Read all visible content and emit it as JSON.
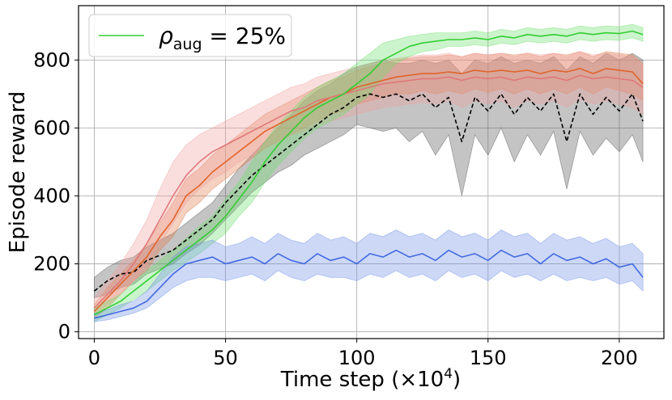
{
  "chart_data": {
    "type": "line",
    "title": "",
    "xlabel": "Time step (×10",
    "xlabel_sup": "4",
    "xlabel_close": ")",
    "ylabel": "Episode reward",
    "xlim": [
      -6,
      217
    ],
    "ylim": [
      -20,
      960
    ],
    "grid": true,
    "x_ticks": [
      0,
      50,
      100,
      150,
      200
    ],
    "y_ticks": [
      0,
      200,
      400,
      600,
      800
    ],
    "legend": {
      "position": "top-left",
      "symbol": "ρ",
      "subscript": "aug",
      "text": " = 25%",
      "color": "#32cd32"
    },
    "series": [
      {
        "name": "black-dashed",
        "color": "#000000",
        "band_color": "#555555",
        "dashed": true,
        "x": [
          0,
          5,
          10,
          15,
          20,
          25,
          30,
          35,
          40,
          45,
          50,
          55,
          60,
          65,
          70,
          75,
          80,
          85,
          90,
          95,
          100,
          105,
          110,
          115,
          120,
          125,
          130,
          135,
          140,
          145,
          150,
          155,
          160,
          165,
          170,
          175,
          180,
          185,
          190,
          195,
          200,
          205,
          209
        ],
        "mean": [
          120,
          150,
          170,
          175,
          210,
          225,
          240,
          270,
          300,
          330,
          380,
          420,
          460,
          490,
          520,
          550,
          580,
          610,
          640,
          660,
          690,
          700,
          690,
          700,
          680,
          700,
          660,
          690,
          560,
          690,
          650,
          700,
          640,
          690,
          650,
          700,
          560,
          700,
          640,
          690,
          650,
          700,
          620
        ],
        "lower": [
          100,
          110,
          130,
          140,
          170,
          185,
          200,
          230,
          255,
          290,
          330,
          370,
          410,
          440,
          470,
          490,
          520,
          540,
          560,
          580,
          610,
          600,
          590,
          600,
          560,
          590,
          520,
          580,
          400,
          580,
          520,
          600,
          500,
          580,
          520,
          590,
          420,
          590,
          520,
          570,
          530,
          580,
          500
        ],
        "upper": [
          160,
          190,
          210,
          220,
          250,
          270,
          290,
          320,
          350,
          380,
          430,
          480,
          520,
          560,
          600,
          640,
          680,
          710,
          730,
          760,
          780,
          790,
          800,
          790,
          790,
          800,
          790,
          800,
          760,
          800,
          790,
          810,
          790,
          800,
          790,
          810,
          770,
          810,
          790,
          820,
          800,
          820,
          800
        ]
      },
      {
        "name": "orange",
        "color": "#e0642a",
        "band_color": "#e07a4a",
        "dashed": false,
        "x": [
          0,
          5,
          10,
          15,
          20,
          25,
          30,
          35,
          40,
          45,
          50,
          55,
          60,
          65,
          70,
          75,
          80,
          85,
          90,
          95,
          100,
          105,
          110,
          115,
          120,
          125,
          130,
          135,
          140,
          145,
          150,
          155,
          160,
          165,
          170,
          175,
          180,
          185,
          190,
          195,
          200,
          205,
          209
        ],
        "mean": [
          60,
          100,
          140,
          180,
          220,
          280,
          330,
          400,
          430,
          470,
          500,
          530,
          560,
          590,
          610,
          630,
          650,
          670,
          690,
          700,
          720,
          730,
          740,
          750,
          755,
          760,
          760,
          765,
          760,
          770,
          765,
          770,
          765,
          770,
          760,
          770,
          765,
          775,
          760,
          775,
          770,
          765,
          730
        ],
        "lower": [
          40,
          70,
          110,
          150,
          180,
          240,
          280,
          350,
          380,
          420,
          450,
          480,
          510,
          540,
          560,
          580,
          600,
          620,
          640,
          650,
          670,
          680,
          690,
          700,
          700,
          710,
          700,
          710,
          700,
          715,
          705,
          715,
          700,
          715,
          700,
          715,
          700,
          720,
          700,
          720,
          710,
          700,
          680
        ],
        "upper": [
          80,
          130,
          170,
          210,
          260,
          320,
          380,
          450,
          480,
          520,
          550,
          580,
          610,
          640,
          660,
          680,
          700,
          720,
          740,
          750,
          770,
          780,
          790,
          800,
          805,
          810,
          810,
          815,
          810,
          820,
          815,
          820,
          815,
          820,
          810,
          820,
          815,
          825,
          810,
          825,
          820,
          815,
          790
        ]
      },
      {
        "name": "pink",
        "color": "#e07878",
        "band_color": "#f0a0a0",
        "dashed": false,
        "x": [
          0,
          5,
          10,
          15,
          20,
          25,
          30,
          35,
          40,
          45,
          50,
          55,
          60,
          65,
          70,
          75,
          80,
          85,
          90,
          95,
          100,
          105,
          110,
          115,
          120,
          125,
          130,
          135,
          140,
          145,
          150,
          155,
          160,
          165,
          170,
          175,
          180,
          185,
          190,
          195,
          200,
          205,
          209
        ],
        "mean": [
          70,
          110,
          150,
          200,
          260,
          330,
          400,
          460,
          500,
          530,
          550,
          570,
          590,
          610,
          630,
          650,
          660,
          680,
          690,
          700,
          710,
          720,
          730,
          735,
          740,
          745,
          745,
          750,
          740,
          750,
          745,
          750,
          740,
          750,
          745,
          750,
          740,
          755,
          745,
          750,
          745,
          740,
          720
        ],
        "lower": [
          50,
          80,
          110,
          150,
          200,
          260,
          320,
          380,
          420,
          450,
          470,
          500,
          520,
          540,
          560,
          580,
          590,
          610,
          620,
          630,
          640,
          650,
          660,
          665,
          670,
          675,
          670,
          680,
          660,
          680,
          670,
          680,
          660,
          680,
          670,
          680,
          660,
          685,
          670,
          680,
          670,
          660,
          640
        ],
        "upper": [
          100,
          150,
          200,
          260,
          330,
          420,
          500,
          550,
          580,
          600,
          620,
          640,
          660,
          680,
          700,
          720,
          730,
          750,
          760,
          770,
          780,
          790,
          800,
          805,
          810,
          815,
          815,
          820,
          810,
          820,
          815,
          820,
          810,
          820,
          815,
          820,
          810,
          825,
          815,
          820,
          815,
          810,
          790
        ]
      },
      {
        "name": "green",
        "color": "#32cd32",
        "band_color": "#6ee06e",
        "dashed": false,
        "x": [
          0,
          5,
          10,
          15,
          20,
          25,
          30,
          35,
          40,
          45,
          50,
          55,
          60,
          65,
          70,
          75,
          80,
          85,
          90,
          95,
          100,
          105,
          110,
          115,
          120,
          125,
          130,
          135,
          140,
          145,
          150,
          155,
          160,
          165,
          170,
          175,
          180,
          185,
          190,
          195,
          200,
          205,
          209
        ],
        "mean": [
          50,
          70,
          90,
          120,
          150,
          180,
          210,
          240,
          270,
          300,
          340,
          390,
          440,
          500,
          550,
          590,
          630,
          660,
          680,
          700,
          730,
          760,
          800,
          820,
          840,
          850,
          855,
          860,
          860,
          865,
          860,
          870,
          865,
          875,
          870,
          875,
          870,
          880,
          875,
          880,
          878,
          885,
          875
        ],
        "lower": [
          30,
          50,
          70,
          95,
          120,
          150,
          180,
          205,
          230,
          260,
          290,
          340,
          380,
          440,
          490,
          530,
          570,
          600,
          620,
          640,
          670,
          700,
          750,
          790,
          810,
          825,
          830,
          840,
          840,
          845,
          840,
          850,
          845,
          855,
          850,
          855,
          850,
          860,
          855,
          860,
          858,
          865,
          855
        ],
        "upper": [
          70,
          90,
          110,
          145,
          180,
          210,
          240,
          275,
          310,
          340,
          390,
          440,
          500,
          560,
          610,
          650,
          690,
          720,
          740,
          760,
          790,
          820,
          850,
          860,
          870,
          875,
          880,
          880,
          880,
          885,
          880,
          890,
          885,
          895,
          890,
          895,
          890,
          900,
          895,
          900,
          898,
          905,
          895
        ]
      },
      {
        "name": "blue",
        "color": "#4169e1",
        "band_color": "#6f8fe8",
        "dashed": false,
        "x": [
          0,
          5,
          10,
          15,
          20,
          25,
          30,
          35,
          40,
          45,
          50,
          55,
          60,
          65,
          70,
          75,
          80,
          85,
          90,
          95,
          100,
          105,
          110,
          115,
          120,
          125,
          130,
          135,
          140,
          145,
          150,
          155,
          160,
          165,
          170,
          175,
          180,
          185,
          190,
          195,
          200,
          205,
          209
        ],
        "mean": [
          40,
          50,
          60,
          70,
          90,
          130,
          170,
          200,
          210,
          220,
          200,
          210,
          220,
          200,
          230,
          210,
          200,
          230,
          210,
          220,
          200,
          230,
          220,
          240,
          220,
          230,
          210,
          240,
          220,
          230,
          210,
          240,
          220,
          230,
          200,
          230,
          210,
          220,
          200,
          215,
          190,
          200,
          160
        ],
        "lower": [
          30,
          35,
          45,
          55,
          70,
          100,
          130,
          150,
          160,
          160,
          150,
          160,
          170,
          150,
          180,
          160,
          150,
          170,
          160,
          160,
          150,
          170,
          160,
          180,
          160,
          170,
          150,
          180,
          160,
          170,
          150,
          180,
          160,
          170,
          150,
          170,
          150,
          160,
          150,
          160,
          140,
          150,
          120
        ],
        "upper": [
          55,
          65,
          80,
          90,
          120,
          170,
          220,
          250,
          260,
          270,
          250,
          260,
          280,
          260,
          290,
          270,
          260,
          290,
          270,
          280,
          260,
          290,
          280,
          300,
          280,
          290,
          270,
          300,
          280,
          290,
          270,
          300,
          280,
          290,
          260,
          290,
          270,
          280,
          260,
          275,
          250,
          260,
          230
        ]
      }
    ]
  }
}
